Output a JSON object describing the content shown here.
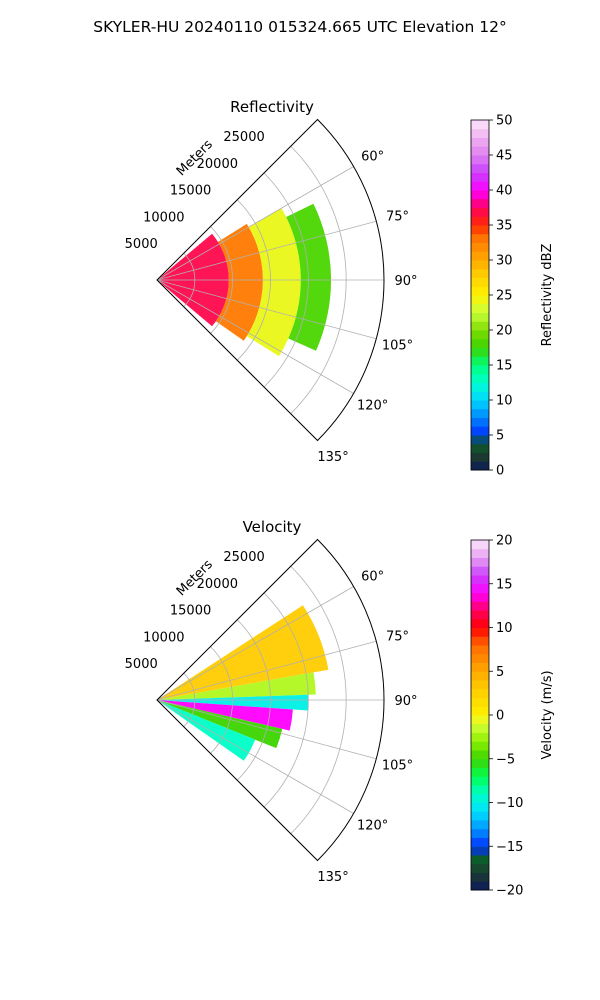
{
  "figure_title": "SKYLER-HU  20240110  015324.665 UTC Elevation 12°",
  "chart_data": [
    {
      "type": "heatmap",
      "subtype": "polar-sector (radar PPI)",
      "title": "Reflectivity",
      "radial_axis_label": "Meters",
      "r_ticks": [
        5000,
        10000,
        15000,
        20000,
        25000
      ],
      "r_tick_labels": [
        "5000",
        "10000",
        "15000",
        "20000",
        "25000"
      ],
      "r_max": 30000,
      "theta_range_deg": [
        45,
        135
      ],
      "theta_ticks_deg": [
        60,
        75,
        90,
        105,
        120,
        135
      ],
      "theta_tick_labels": [
        "60°",
        "75°",
        "90°",
        "105°",
        "120°",
        "135°"
      ],
      "grid": true,
      "colorbar": {
        "label": "Reflectivity dBZ",
        "range": [
          0,
          50
        ],
        "ticks": [
          0,
          5,
          10,
          15,
          20,
          25,
          30,
          35,
          40,
          45,
          50
        ],
        "tick_labels": [
          "0",
          "5",
          "10",
          "15",
          "20",
          "25",
          "30",
          "35",
          "40",
          "45",
          "50"
        ],
        "stops": [
          [
            0,
            "#0a1a5c"
          ],
          [
            2,
            "#1d3b2e"
          ],
          [
            4,
            "#0b5e2b"
          ],
          [
            5,
            "#0030ff"
          ],
          [
            8,
            "#0096ff"
          ],
          [
            10,
            "#00d8ff"
          ],
          [
            12.5,
            "#00ffd0"
          ],
          [
            15,
            "#00ff7a"
          ],
          [
            17.5,
            "#3cd400"
          ],
          [
            20,
            "#7ddc00"
          ],
          [
            22.5,
            "#c8ff3c"
          ],
          [
            25,
            "#fff200"
          ],
          [
            28,
            "#ffcc00"
          ],
          [
            30,
            "#ffaa00"
          ],
          [
            33,
            "#ff7a00"
          ],
          [
            35,
            "#ff2a00"
          ],
          [
            37.5,
            "#ff0060"
          ],
          [
            40,
            "#ff00ff"
          ],
          [
            42.5,
            "#c840ff"
          ],
          [
            45,
            "#e080f0"
          ],
          [
            47.5,
            "#f0b0f0"
          ],
          [
            50,
            "#fde6fd"
          ]
        ]
      },
      "value_bands": [
        {
          "r_from": 0,
          "r_to": 9500,
          "theta_from": 50,
          "theta_to": 130,
          "value": 37
        },
        {
          "r_from": 9500,
          "r_to": 14000,
          "theta_from": 58,
          "theta_to": 125,
          "value": 33
        },
        {
          "r_from": 14000,
          "r_to": 19000,
          "theta_from": 60,
          "theta_to": 122,
          "value": 24
        },
        {
          "r_from": 19000,
          "r_to": 23000,
          "theta_from": 64,
          "theta_to": 114,
          "value": 18
        }
      ]
    },
    {
      "type": "heatmap",
      "subtype": "polar-sector (radar PPI)",
      "title": "Velocity",
      "radial_axis_label": "Meters",
      "r_ticks": [
        5000,
        10000,
        15000,
        20000,
        25000
      ],
      "r_tick_labels": [
        "5000",
        "10000",
        "15000",
        "20000",
        "25000"
      ],
      "r_max": 30000,
      "theta_range_deg": [
        45,
        135
      ],
      "theta_ticks_deg": [
        60,
        75,
        90,
        105,
        120,
        135
      ],
      "theta_tick_labels": [
        "60°",
        "75°",
        "90°",
        "105°",
        "120°",
        "135°"
      ],
      "grid": true,
      "colorbar": {
        "label": "Velocity (m/s)",
        "range": [
          -20,
          20
        ],
        "ticks": [
          -20,
          -15,
          -10,
          -5,
          0,
          5,
          10,
          15,
          20
        ],
        "tick_labels": [
          "−20",
          "−15",
          "−10",
          "−5",
          "0",
          "5",
          "10",
          "15",
          "20"
        ],
        "stops": [
          [
            -20,
            "#0a1a5c"
          ],
          [
            -18,
            "#1d3b2e"
          ],
          [
            -16.5,
            "#0b5e2b"
          ],
          [
            -15,
            "#0030ff"
          ],
          [
            -13,
            "#0096ff"
          ],
          [
            -11,
            "#00e0ff"
          ],
          [
            -9,
            "#00ffc8"
          ],
          [
            -7,
            "#00ff50"
          ],
          [
            -5,
            "#3cd400"
          ],
          [
            -3,
            "#8cf000"
          ],
          [
            -1,
            "#d8ff3c"
          ],
          [
            0,
            "#fff000"
          ],
          [
            3,
            "#ffcc00"
          ],
          [
            5,
            "#ffaa00"
          ],
          [
            8,
            "#ff6a00"
          ],
          [
            10,
            "#ff0000"
          ],
          [
            12,
            "#ff0060"
          ],
          [
            14,
            "#ff00ff"
          ],
          [
            16,
            "#c840ff"
          ],
          [
            18,
            "#e8a0f0"
          ],
          [
            20,
            "#fde6fd"
          ]
        ]
      },
      "value_bands": [
        {
          "r_from": 0,
          "r_to": 23000,
          "theta_from": 57,
          "theta_to": 80,
          "value": 3
        },
        {
          "r_from": 0,
          "r_to": 21000,
          "theta_from": 80,
          "theta_to": 88,
          "value": -2
        },
        {
          "r_from": 0,
          "r_to": 20000,
          "theta_from": 88,
          "theta_to": 94,
          "value": -10
        },
        {
          "r_from": 0,
          "r_to": 18000,
          "theta_from": 94,
          "theta_to": 103,
          "value": 14
        },
        {
          "r_from": 0,
          "r_to": 17000,
          "theta_from": 103,
          "theta_to": 112,
          "value": -5
        },
        {
          "r_from": 0,
          "r_to": 14000,
          "theta_from": 112,
          "theta_to": 125,
          "value": -9
        }
      ]
    }
  ]
}
